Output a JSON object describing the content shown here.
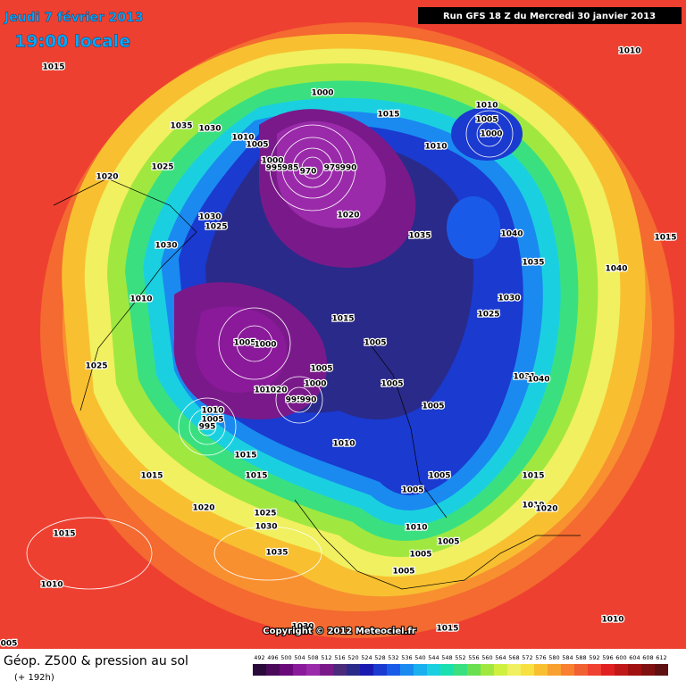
{
  "header": {
    "date": "Jeudi 7 février 2013",
    "time": "19:00 locale",
    "run": "Run GFS 18 Z du Mercredi 30 janvier 2013"
  },
  "isobar_labels": [
    "1015",
    "1010",
    "1035",
    "1030",
    "1010",
    "1005",
    "1025",
    "1020",
    "1000",
    "1015",
    "1010",
    "1005",
    "1000",
    "1010",
    "1000",
    "995",
    "985",
    "970",
    "979",
    "990",
    "1020",
    "1030",
    "1025",
    "1030",
    "1035",
    "1040",
    "1015",
    "1035",
    "1040",
    "1010",
    "1030",
    "1025",
    "1015",
    "1005",
    "1000",
    "1005",
    "1025",
    "1005",
    "1000",
    "1005",
    "1031",
    "1040",
    "1010",
    "1020",
    "995",
    "990",
    "1005",
    "1010",
    "1005",
    "995",
    "1010",
    "1015",
    "1015",
    "1015",
    "1005",
    "1015",
    "1005",
    "1020",
    "1025",
    "1010",
    "1020",
    "1030",
    "1015",
    "1010",
    "1005",
    "1005",
    "1035",
    "1010",
    "1005",
    "1015",
    "1010",
    "1030",
    "005"
  ],
  "copyright": "Copyright © 2012 Meteociel.fr",
  "legend": {
    "title": "Géop. Z500 & pression au sol",
    "lead": "(+ 192h)",
    "scale": [
      492,
      496,
      500,
      504,
      508,
      512,
      516,
      520,
      524,
      528,
      532,
      536,
      540,
      544,
      548,
      552,
      556,
      560,
      564,
      568,
      572,
      576,
      580,
      584,
      588,
      592,
      596,
      600,
      604,
      608,
      612
    ],
    "colors": [
      "#2a0a3a",
      "#4a0a5a",
      "#6a0a7a",
      "#8a1a9a",
      "#9a2aaa",
      "#7a1a8a",
      "#4a2a7a",
      "#2a2a8a",
      "#1a1ab0",
      "#1a3ad0",
      "#1a5ae8",
      "#1a8af0",
      "#1ab0f0",
      "#1ad0e0",
      "#1ae0b0",
      "#3ae080",
      "#6ae050",
      "#a0e840",
      "#d0f040",
      "#f0f060",
      "#f8e040",
      "#f8c030",
      "#f8a030",
      "#f88030",
      "#f06030",
      "#f04030",
      "#e02020",
      "#c01818",
      "#a01010",
      "#801010",
      "#601010"
    ]
  }
}
